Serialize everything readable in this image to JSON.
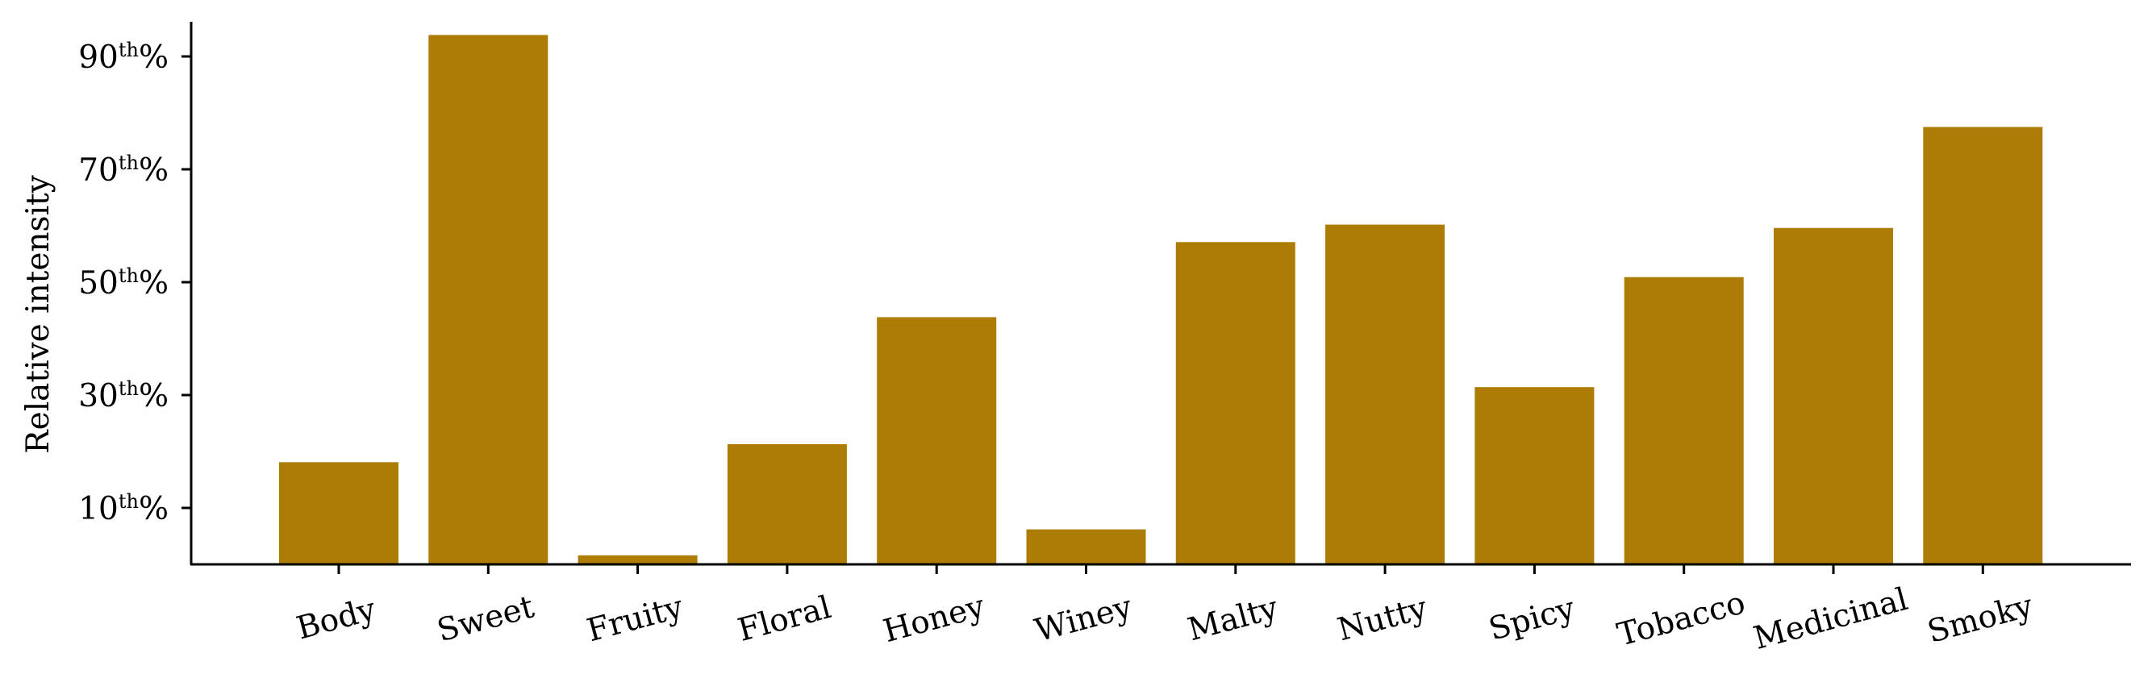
{
  "chart_data": {
    "type": "bar",
    "title": "",
    "xlabel": "",
    "ylabel": "Relative intensity",
    "categories": [
      "Body",
      "Sweet",
      "Fruity",
      "Floral",
      "Honey",
      "Winey",
      "Malty",
      "Nutty",
      "Spicy",
      "Tobacco",
      "Medicinal",
      "Smoky"
    ],
    "values": [
      18.1,
      93.8,
      1.6,
      21.3,
      43.8,
      6.2,
      57.1,
      60.2,
      31.4,
      50.9,
      59.6,
      77.5
    ],
    "ylim": [
      0,
      100
    ],
    "yticks": [
      {
        "value": 10,
        "num": "10",
        "sup": "th",
        "suffix": "%"
      },
      {
        "value": 30,
        "num": "30",
        "sup": "th",
        "suffix": "%"
      },
      {
        "value": 50,
        "num": "50",
        "sup": "th",
        "suffix": "%"
      },
      {
        "value": 70,
        "num": "70",
        "sup": "th",
        "suffix": "%"
      },
      {
        "value": 90,
        "num": "90",
        "sup": "th",
        "suffix": "%"
      }
    ],
    "bar_color": "#ad7c05",
    "grid": false,
    "legend": false
  }
}
